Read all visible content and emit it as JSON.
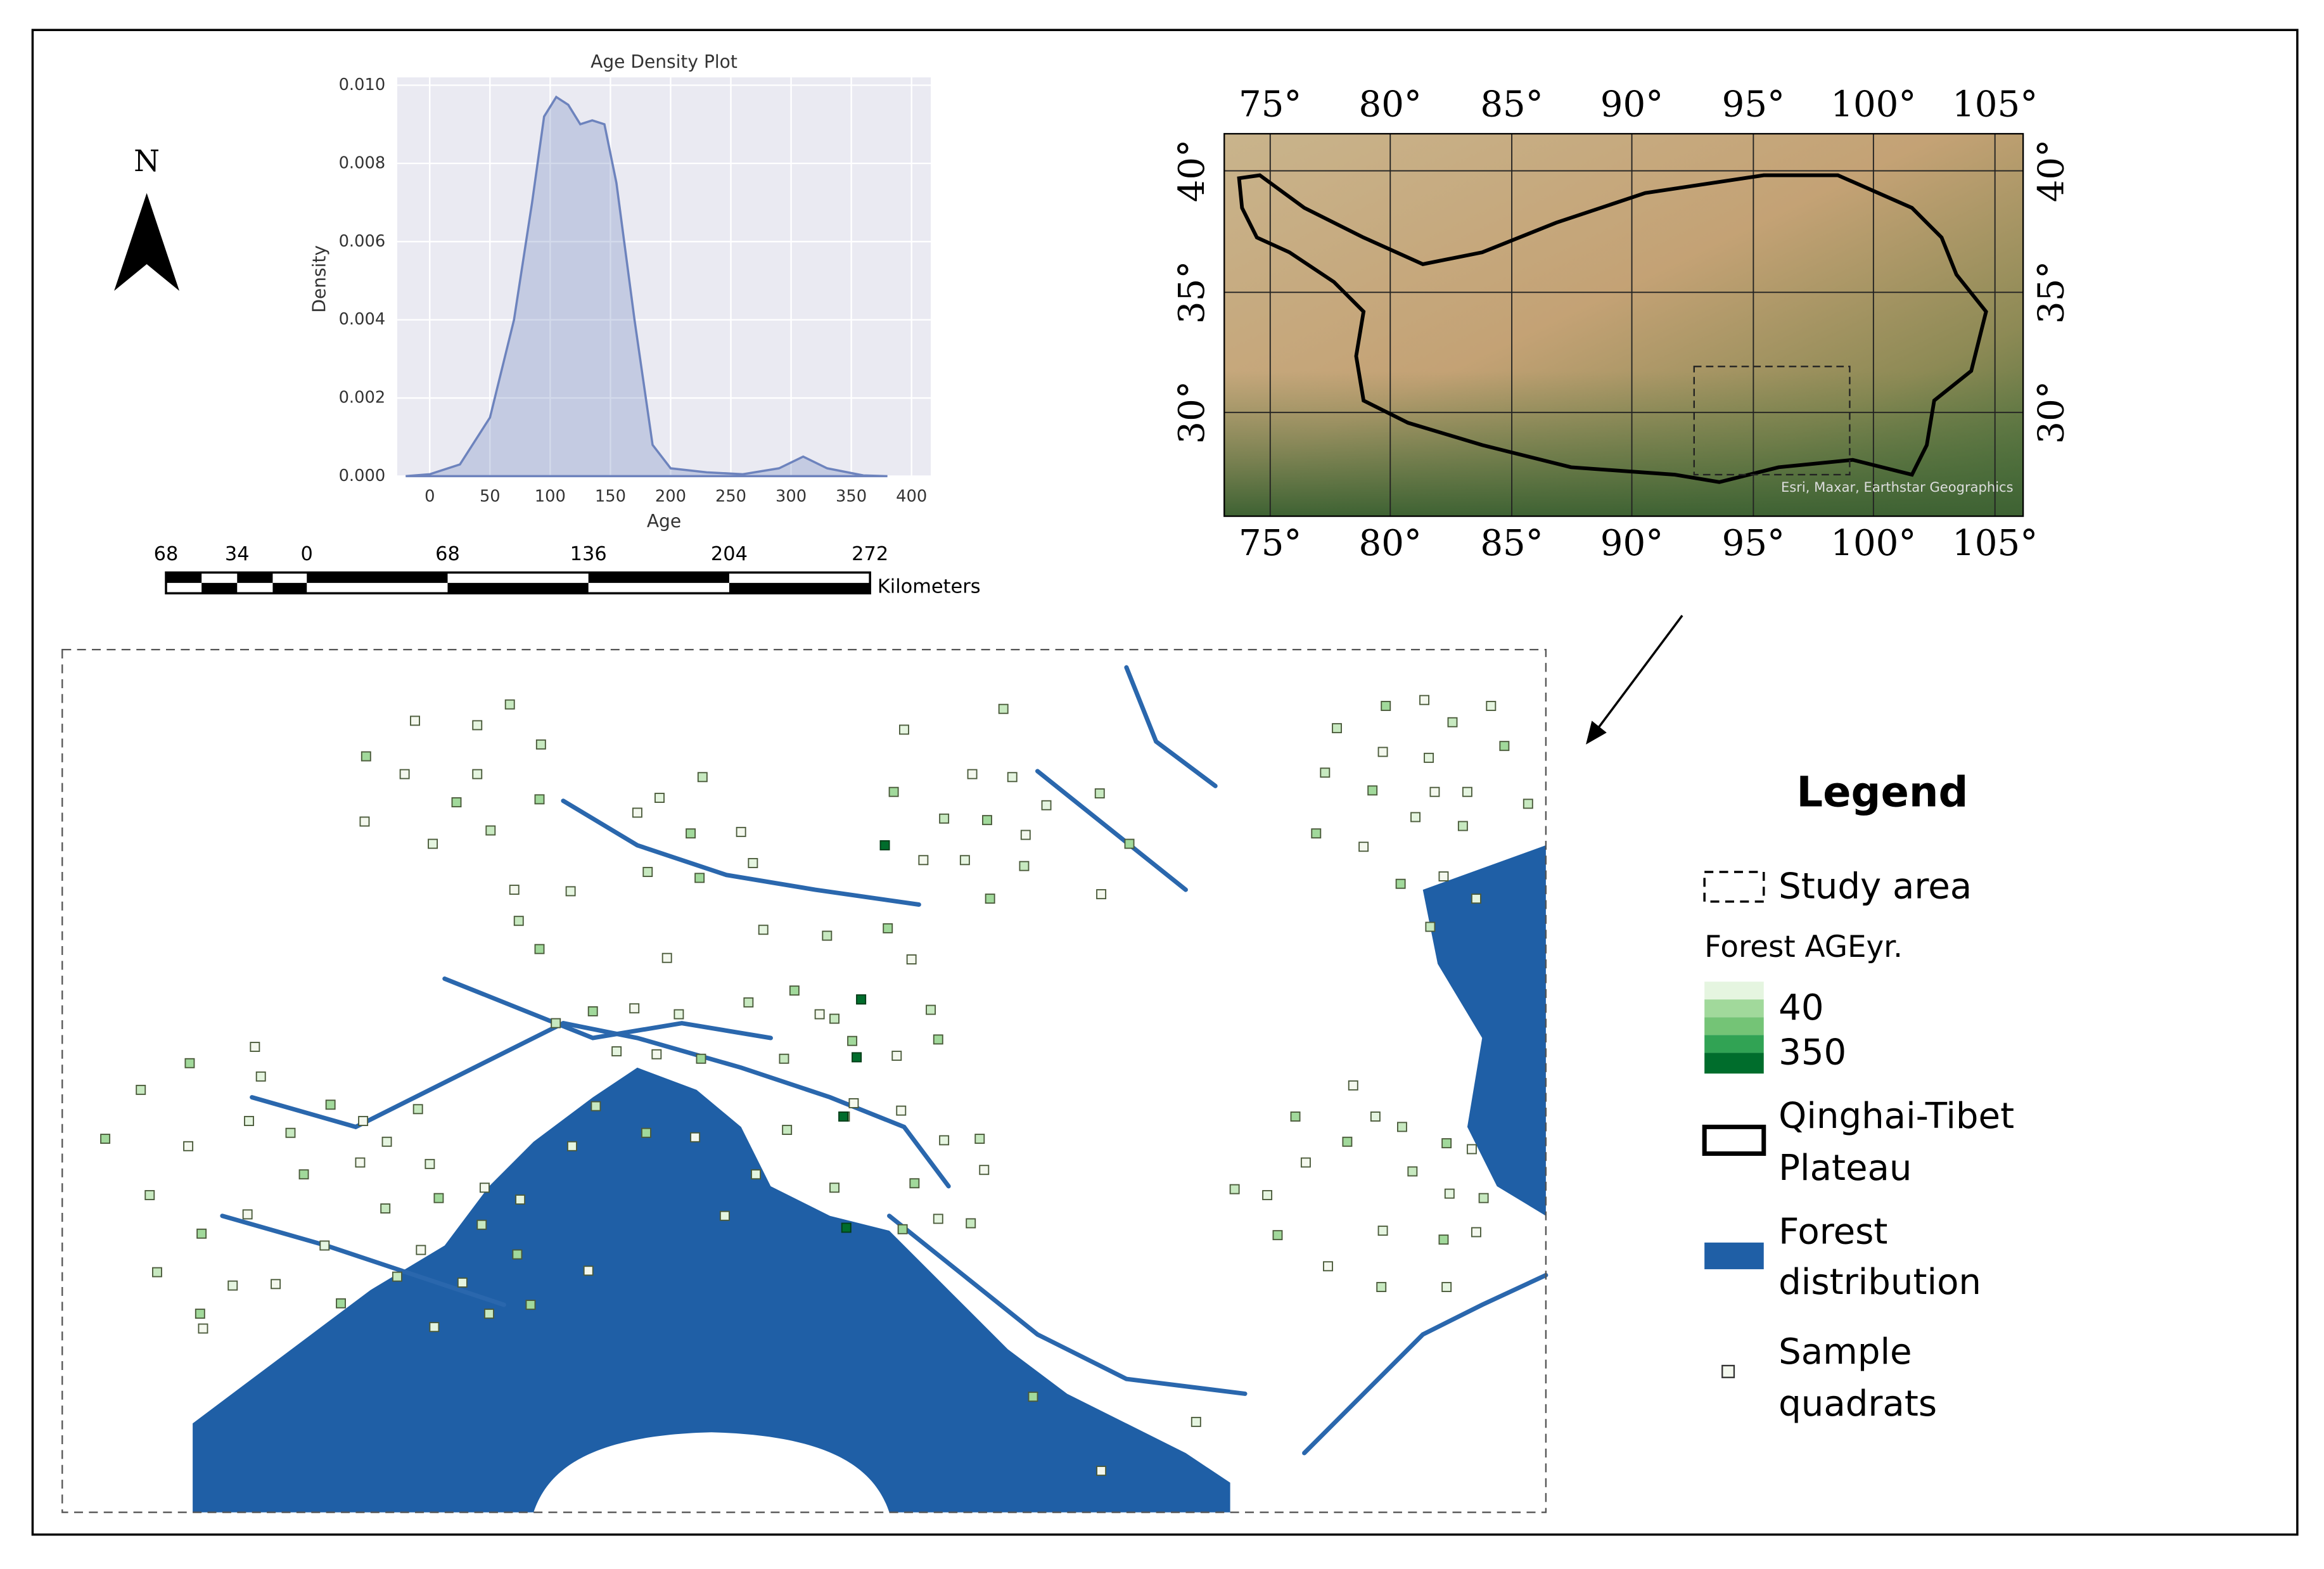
{
  "chart_data": {
    "type": "area",
    "title": "Age Density Plot",
    "x_label": "Age",
    "y_label": "Density",
    "x": [
      -20,
      0,
      25,
      50,
      70,
      85,
      95,
      105,
      115,
      125,
      135,
      145,
      155,
      170,
      185,
      200,
      230,
      260,
      290,
      310,
      330,
      360,
      380
    ],
    "values": [
      0,
      5e-05,
      0.0003,
      0.0015,
      0.004,
      0.007,
      0.0092,
      0.0097,
      0.0095,
      0.009,
      0.0091,
      0.009,
      0.0075,
      0.004,
      0.0008,
      0.0002,
      0.0001,
      5e-05,
      0.0002,
      0.0005,
      0.0002,
      2e-05,
      0
    ],
    "color": "#6d83bd",
    "xlim": [
      -27,
      416
    ],
    "xticks": [
      0,
      50,
      100,
      150,
      200,
      250,
      300,
      350,
      400
    ],
    "ylim": [
      0,
      0.0102
    ],
    "yticks": [
      {
        "value": 0,
        "label": "0.000"
      },
      {
        "value": 0.002,
        "label": "0.002"
      },
      {
        "value": 0.004,
        "label": "0.004"
      },
      {
        "value": 0.006,
        "label": "0.006"
      },
      {
        "value": 0.008,
        "label": "0.008"
      },
      {
        "value": 0.01,
        "label": "0.010"
      }
    ],
    "grid": true
  },
  "map": {
    "north": "N",
    "scale_bar": {
      "labels": [
        "68",
        "34",
        "0",
        "68",
        "136",
        "204",
        "272"
      ],
      "unit": "Kilometers"
    },
    "inset": {
      "lon_labels": [
        "75°",
        "80°",
        "85°",
        "90°",
        "95°",
        "100°",
        "105°"
      ],
      "lat_labels": [
        "40°",
        "35°",
        "30°"
      ],
      "credit": "Esri, Maxar, Earthstar Geographics"
    },
    "legend": {
      "title": "Legend",
      "study_area": "Study area",
      "age_title": "Forest AGEyr.",
      "age_min": "40",
      "age_max": "350",
      "plateau": [
        "Qinghai-Tibet",
        "Plateau"
      ],
      "forest": [
        "Forest",
        "distribution"
      ],
      "quadrats": [
        "Sample",
        "quadrats"
      ]
    }
  }
}
